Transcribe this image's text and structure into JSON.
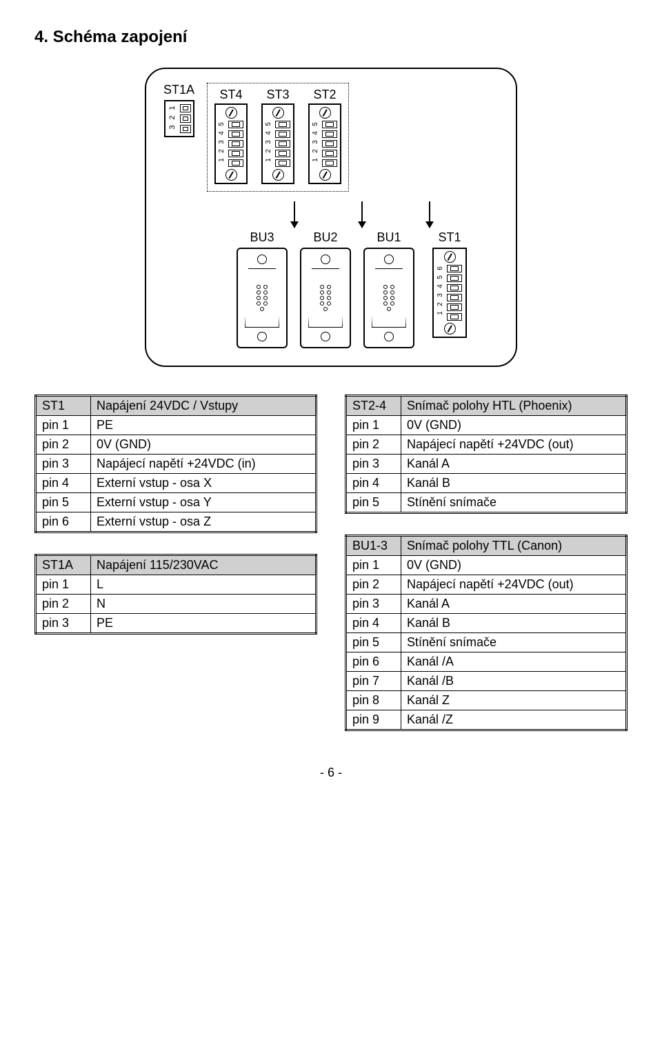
{
  "heading": "4.  Schéma zapojení",
  "diagram": {
    "st1a": {
      "label": "ST1A",
      "pins": [
        "1",
        "2",
        "3"
      ]
    },
    "top_connectors": [
      {
        "label": "ST4",
        "pins": [
          "5",
          "4",
          "3",
          "2",
          "1"
        ]
      },
      {
        "label": "ST3",
        "pins": [
          "5",
          "4",
          "3",
          "2",
          "1"
        ]
      },
      {
        "label": "ST2",
        "pins": [
          "5",
          "4",
          "3",
          "2",
          "1"
        ]
      }
    ],
    "bottom_connectors": [
      {
        "label": "BU3"
      },
      {
        "label": "BU2"
      },
      {
        "label": "BU1"
      }
    ],
    "st1": {
      "label": "ST1",
      "pins": [
        "6",
        "5",
        "4",
        "3",
        "2",
        "1"
      ]
    }
  },
  "tables": {
    "st1": {
      "header": [
        "ST1",
        "Napájení 24VDC / Vstupy"
      ],
      "rows": [
        [
          "pin 1",
          "PE"
        ],
        [
          "pin 2",
          "0V (GND)"
        ],
        [
          "pin 3",
          "Napájecí napětí +24VDC (in)"
        ],
        [
          "pin 4",
          "Externí vstup - osa X"
        ],
        [
          "pin 5",
          "Externí vstup - osa Y"
        ],
        [
          "pin 6",
          "Externí vstup - osa Z"
        ]
      ]
    },
    "st1a": {
      "header": [
        "ST1A",
        "Napájení 115/230VAC"
      ],
      "rows": [
        [
          "pin 1",
          "L"
        ],
        [
          "pin 2",
          "N"
        ],
        [
          "pin 3",
          "PE"
        ]
      ]
    },
    "st24": {
      "header": [
        "ST2-4",
        "Snímač polohy HTL (Phoenix)"
      ],
      "rows": [
        [
          "pin 1",
          "0V (GND)"
        ],
        [
          "pin 2",
          "Napájecí napětí +24VDC (out)"
        ],
        [
          "pin 3",
          "Kanál A"
        ],
        [
          "pin 4",
          "Kanál B"
        ],
        [
          "pin 5",
          "Stínění snímače"
        ]
      ]
    },
    "bu13": {
      "header": [
        "BU1-3",
        "Snímač polohy TTL (Canon)"
      ],
      "rows": [
        [
          "pin 1",
          "0V (GND)"
        ],
        [
          "pin 2",
          "Napájecí napětí +24VDC (out)"
        ],
        [
          "pin 3",
          "Kanál A"
        ],
        [
          "pin 4",
          "Kanál B"
        ],
        [
          "pin 5",
          "Stínění snímače"
        ],
        [
          "pin 6",
          "Kanál /A"
        ],
        [
          "pin 7",
          "Kanál /B"
        ],
        [
          "pin 8",
          "Kanál Z"
        ],
        [
          "pin 9",
          "Kanál /Z"
        ]
      ]
    }
  },
  "footer": "- 6 -",
  "colors": {
    "bg": "#ffffff",
    "fg": "#000000",
    "header_bg": "#d0d0d0"
  }
}
